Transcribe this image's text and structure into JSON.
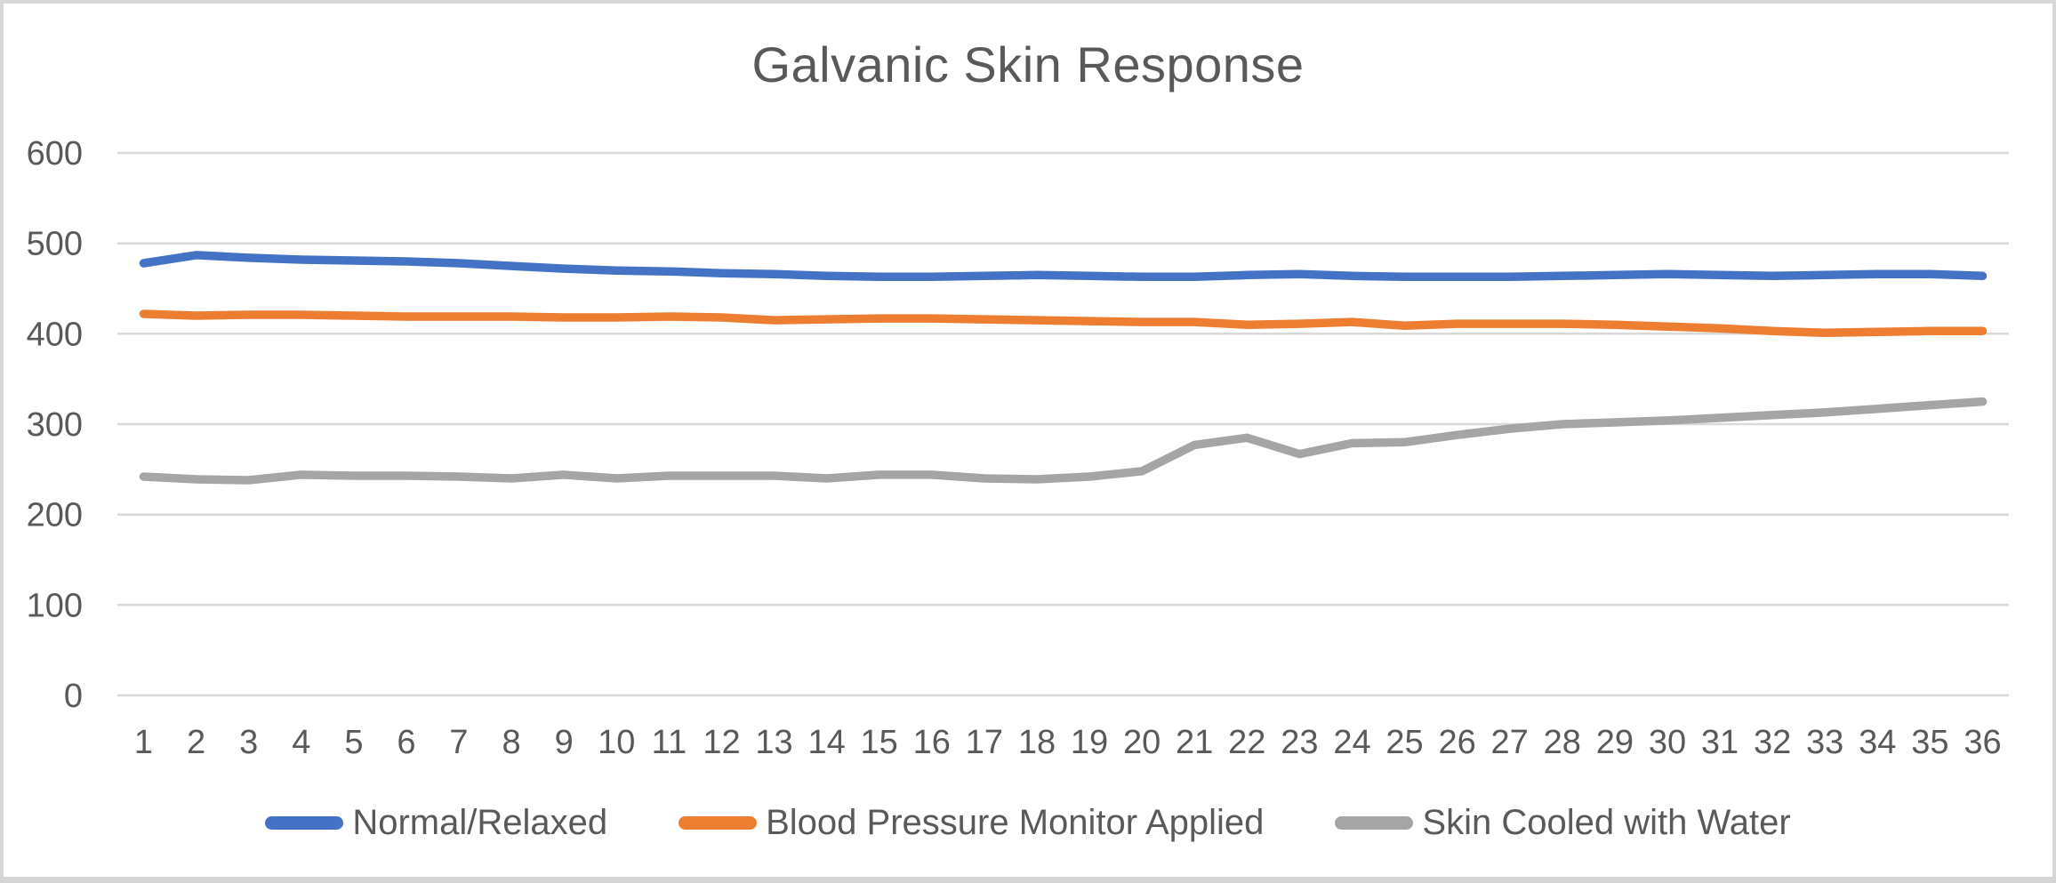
{
  "chart_data": {
    "type": "line",
    "title": "Galvanic Skin Response",
    "xlabel": "",
    "ylabel": "",
    "x": [
      1,
      2,
      3,
      4,
      5,
      6,
      7,
      8,
      9,
      10,
      11,
      12,
      13,
      14,
      15,
      16,
      17,
      18,
      19,
      20,
      21,
      22,
      23,
      24,
      25,
      26,
      27,
      28,
      29,
      30,
      31,
      32,
      33,
      34,
      35,
      36
    ],
    "series": [
      {
        "name": "Normal/Relaxed",
        "color": "#4472C4",
        "values": [
          478,
          487,
          484,
          482,
          481,
          480,
          478,
          475,
          472,
          470,
          469,
          467,
          466,
          464,
          463,
          463,
          464,
          465,
          464,
          463,
          463,
          465,
          466,
          464,
          463,
          463,
          463,
          464,
          465,
          466,
          465,
          464,
          465,
          466,
          466,
          464
        ]
      },
      {
        "name": "Blood Pressure Monitor Applied",
        "color": "#ED7D31",
        "values": [
          422,
          420,
          421,
          421,
          420,
          419,
          419,
          419,
          418,
          418,
          419,
          418,
          415,
          416,
          417,
          417,
          416,
          415,
          414,
          413,
          413,
          410,
          411,
          413,
          409,
          411,
          411,
          411,
          410,
          408,
          406,
          403,
          401,
          402,
          403,
          403
        ]
      },
      {
        "name": "Skin Cooled with Water",
        "color": "#A5A5A5",
        "values": [
          242,
          239,
          238,
          244,
          243,
          243,
          242,
          240,
          244,
          240,
          243,
          243,
          243,
          240,
          244,
          244,
          240,
          239,
          242,
          248,
          277,
          285,
          267,
          279,
          280,
          288,
          295,
          300,
          302,
          304,
          307,
          310,
          313,
          317,
          321,
          325
        ]
      }
    ],
    "ylim": [
      0,
      600
    ],
    "ytick_step": 100,
    "ytick_labels": [
      "0",
      "100",
      "200",
      "300",
      "400",
      "500",
      "600"
    ],
    "grid": "horizontal",
    "legend_position": "bottom",
    "colors": {
      "grid": "#d9d9d9",
      "text": "#595959",
      "background": "#ffffff",
      "frame_border": "#d8d8d8",
      "bottom_strip": "#d4d4d4"
    }
  }
}
